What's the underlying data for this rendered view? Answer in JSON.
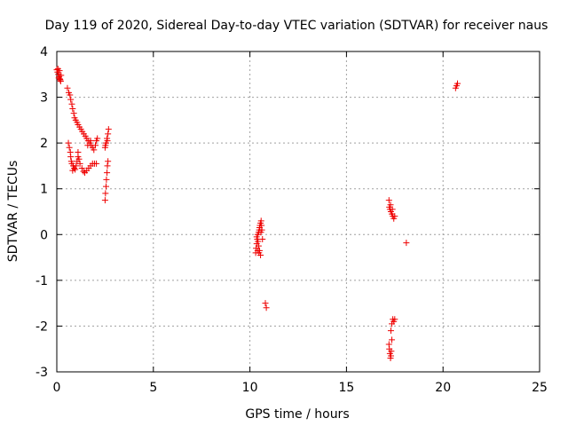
{
  "chart_data": {
    "type": "scatter",
    "title": "Day 119 of 2020, Sidereal Day-to-day VTEC variation (SDTVAR) for receiver naus",
    "xlabel": "GPS time / hours",
    "ylabel": "SDTVAR / TECUs",
    "xlim": [
      0,
      25
    ],
    "ylim": [
      -3,
      4
    ],
    "xticks": [
      "0",
      "5",
      "10",
      "15",
      "20",
      "25"
    ],
    "yticks": [
      "-3",
      "-2",
      "-1",
      "0",
      "1",
      "2",
      "3",
      "4"
    ],
    "xtick_values": [
      0,
      5,
      10,
      15,
      20,
      25
    ],
    "ytick_values": [
      -3,
      -2,
      -1,
      0,
      1,
      2,
      3,
      4
    ],
    "grid": true,
    "marker": "+",
    "color": "#ee0000",
    "series": [
      {
        "name": "SDTVAR",
        "points": [
          [
            0.0,
            3.6
          ],
          [
            0.04,
            3.55
          ],
          [
            0.08,
            3.5
          ],
          [
            0.12,
            3.45
          ],
          [
            0.16,
            3.4
          ],
          [
            0.2,
            3.35
          ],
          [
            0.06,
            3.62
          ],
          [
            0.14,
            3.58
          ],
          [
            0.22,
            3.48
          ],
          [
            0.1,
            3.42
          ],
          [
            0.18,
            3.38
          ],
          [
            0.55,
            3.2
          ],
          [
            0.62,
            3.1
          ],
          [
            0.68,
            3.05
          ],
          [
            0.72,
            2.95
          ],
          [
            0.78,
            2.85
          ],
          [
            0.82,
            2.75
          ],
          [
            0.88,
            2.65
          ],
          [
            0.92,
            2.55
          ],
          [
            0.98,
            2.5
          ],
          [
            1.05,
            2.45
          ],
          [
            1.1,
            2.4
          ],
          [
            1.18,
            2.35
          ],
          [
            1.25,
            2.3
          ],
          [
            1.32,
            2.25
          ],
          [
            1.4,
            2.2
          ],
          [
            1.48,
            2.15
          ],
          [
            1.55,
            2.1
          ],
          [
            1.62,
            2.05
          ],
          [
            1.7,
            2.0
          ],
          [
            1.78,
            1.95
          ],
          [
            1.85,
            1.9
          ],
          [
            1.92,
            1.85
          ],
          [
            2.0,
            1.95
          ],
          [
            2.05,
            2.05
          ],
          [
            2.1,
            2.1
          ],
          [
            1.6,
            1.95
          ],
          [
            1.75,
            2.05
          ],
          [
            0.6,
            2.0
          ],
          [
            0.65,
            1.9
          ],
          [
            0.7,
            1.8
          ],
          [
            0.72,
            1.7
          ],
          [
            0.75,
            1.6
          ],
          [
            0.78,
            1.55
          ],
          [
            0.85,
            1.5
          ],
          [
            0.9,
            1.45
          ],
          [
            0.95,
            1.42
          ],
          [
            1.0,
            1.5
          ],
          [
            1.05,
            1.6
          ],
          [
            1.1,
            1.7
          ],
          [
            1.15,
            1.65
          ],
          [
            1.2,
            1.55
          ],
          [
            1.3,
            1.45
          ],
          [
            1.38,
            1.38
          ],
          [
            1.45,
            1.35
          ],
          [
            1.55,
            1.4
          ],
          [
            1.65,
            1.45
          ],
          [
            1.75,
            1.5
          ],
          [
            1.85,
            1.55
          ],
          [
            1.95,
            1.55
          ],
          [
            2.05,
            1.55
          ],
          [
            0.82,
            1.4
          ],
          [
            1.1,
            1.8
          ],
          [
            2.5,
            0.75
          ],
          [
            2.52,
            0.9
          ],
          [
            2.55,
            1.05
          ],
          [
            2.57,
            1.2
          ],
          [
            2.6,
            1.35
          ],
          [
            2.62,
            1.5
          ],
          [
            2.65,
            1.6
          ],
          [
            2.5,
            1.9
          ],
          [
            2.55,
            2.0
          ],
          [
            2.6,
            2.1
          ],
          [
            2.65,
            2.2
          ],
          [
            2.68,
            2.3
          ],
          [
            2.52,
            1.95
          ],
          [
            2.62,
            2.05
          ],
          [
            10.3,
            -0.4
          ],
          [
            10.32,
            -0.3
          ],
          [
            10.35,
            -0.2
          ],
          [
            10.38,
            -0.1
          ],
          [
            10.4,
            0.0
          ],
          [
            10.42,
            -0.15
          ],
          [
            10.45,
            0.05
          ],
          [
            10.48,
            0.1
          ],
          [
            10.5,
            0.15
          ],
          [
            10.52,
            0.2
          ],
          [
            10.55,
            0.25
          ],
          [
            10.58,
            0.3
          ],
          [
            10.55,
            -0.45
          ],
          [
            10.5,
            -0.35
          ],
          [
            10.45,
            -0.25
          ],
          [
            10.35,
            -0.05
          ],
          [
            10.6,
            0.2
          ],
          [
            10.62,
            0.1
          ],
          [
            10.65,
            -0.1
          ],
          [
            10.4,
            -0.35
          ],
          [
            10.47,
            -0.4
          ],
          [
            10.57,
            0.05
          ],
          [
            10.8,
            -1.5
          ],
          [
            10.85,
            -1.6
          ],
          [
            17.2,
            0.75
          ],
          [
            17.22,
            0.6
          ],
          [
            17.25,
            0.55
          ],
          [
            17.3,
            0.5
          ],
          [
            17.35,
            0.45
          ],
          [
            17.4,
            0.4
          ],
          [
            17.45,
            0.35
          ],
          [
            17.5,
            0.4
          ],
          [
            17.38,
            0.55
          ],
          [
            17.28,
            0.65
          ],
          [
            18.1,
            -0.18
          ],
          [
            17.2,
            -2.4
          ],
          [
            17.22,
            -2.5
          ],
          [
            17.25,
            -2.6
          ],
          [
            17.28,
            -2.7
          ],
          [
            17.3,
            -2.65
          ],
          [
            17.32,
            -2.55
          ],
          [
            17.35,
            -2.3
          ],
          [
            17.3,
            -2.1
          ],
          [
            17.35,
            -1.95
          ],
          [
            17.4,
            -1.85
          ],
          [
            17.45,
            -1.9
          ],
          [
            17.5,
            -1.85
          ],
          [
            20.65,
            3.2
          ],
          [
            20.7,
            3.25
          ],
          [
            20.75,
            3.3
          ]
        ]
      }
    ]
  }
}
